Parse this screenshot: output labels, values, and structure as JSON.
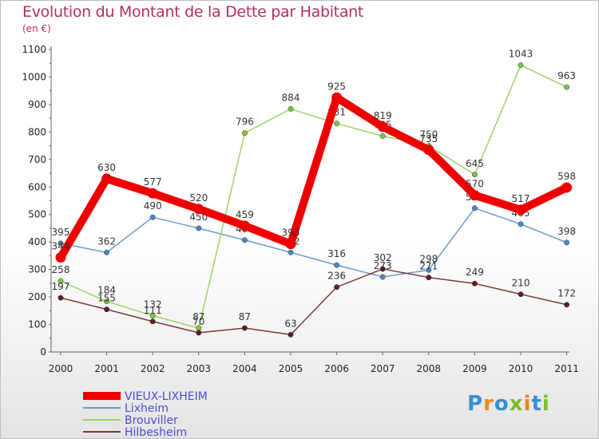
{
  "title": "Evolution du Montant de la Dette par Habitant",
  "subtitle": "(en €)",
  "logo": {
    "text": "Proxiti",
    "colors": [
      "#3a8fd4",
      "#e88a1a",
      "#3a8fd4",
      "#7cbd2a",
      "#e88a1a",
      "#3a8fd4",
      "#7cbd2a"
    ]
  },
  "chart_data": {
    "type": "line",
    "title": "Evolution du Montant de la Dette par Habitant",
    "ylabel": "(en €)",
    "xlabel": "",
    "ylim": [
      0,
      1100
    ],
    "yticks": [
      0,
      100,
      200,
      300,
      400,
      500,
      600,
      700,
      800,
      900,
      1000,
      1100
    ],
    "categories": [
      "2000",
      "2001",
      "2002",
      "2003",
      "2004",
      "2005",
      "2006",
      "2007",
      "2008",
      "2009",
      "2010",
      "2011"
    ],
    "grid": false,
    "legend_position": "bottom-left",
    "series": [
      {
        "name": "Lixheim",
        "color": "#6a9cc8",
        "marker": "#4a86c8",
        "values": [
          395,
          362,
          490,
          450,
          407,
          362,
          316,
          273,
          298,
          523,
          465,
          398
        ]
      },
      {
        "name": "Brouviller",
        "color": "#9bd46a",
        "marker": "#7cc63e",
        "values": [
          258,
          184,
          132,
          87,
          796,
          884,
          831,
          785,
          750,
          645,
          1043,
          963
        ]
      },
      {
        "name": "Hilbesheim",
        "color": "#7a3a3a",
        "marker": "#5a1f1f",
        "values": [
          197,
          155,
          111,
          70,
          87,
          63,
          236,
          302,
          271,
          249,
          210,
          172
        ]
      },
      {
        "name": "VIEUX-LIXHEIM",
        "color": "#ee0000",
        "marker": "#ee0000",
        "values": [
          344,
          630,
          577,
          520,
          459,
          393,
          925,
          819,
          735,
          570,
          517,
          598
        ]
      }
    ],
    "legend_order": [
      "VIEUX-LIXHEIM",
      "Lixheim",
      "Brouviller",
      "Hilbesheim"
    ],
    "legend_text_color": "#4b4bd6"
  }
}
